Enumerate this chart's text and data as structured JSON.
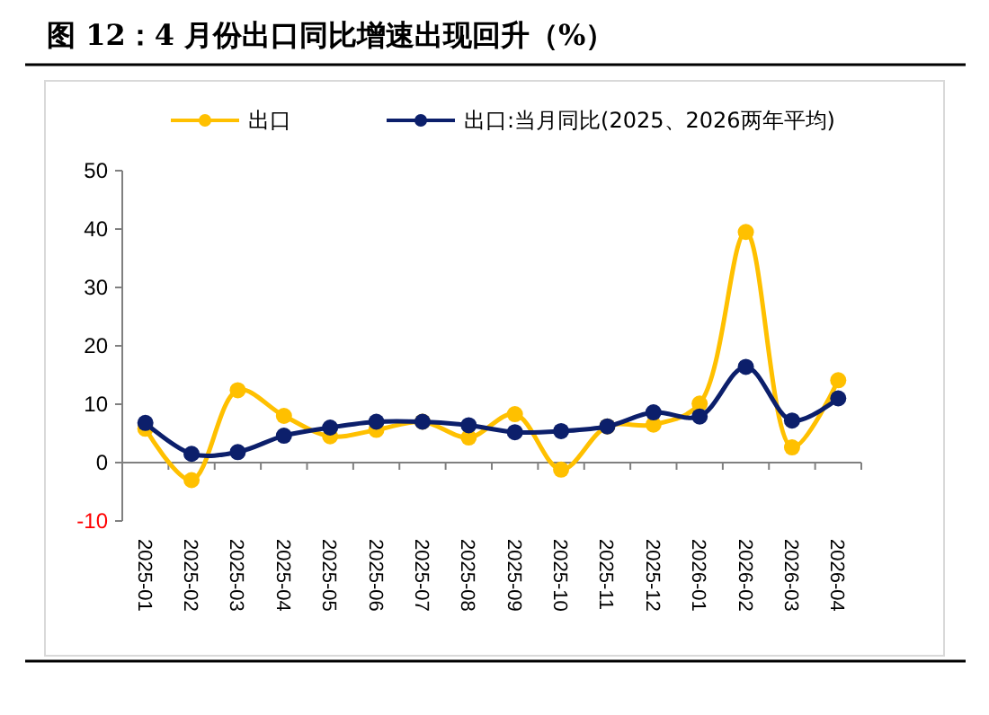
{
  "chart_data": {
    "type": "line",
    "title": "图 12：4 月份出口同比增速出现回升（%）",
    "categories": [
      "2025-01",
      "2025-02",
      "2025-03",
      "2025-04",
      "2025-05",
      "2025-06",
      "2025-07",
      "2025-08",
      "2025-09",
      "2025-10",
      "2025-11",
      "2025-12",
      "2026-01",
      "2026-02",
      "2026-03",
      "2026-04"
    ],
    "series": [
      {
        "name": "出口",
        "color": "#ffc000",
        "values": [
          5.8,
          -3.0,
          12.4,
          8.0,
          4.5,
          5.6,
          7.0,
          4.3,
          8.3,
          -1.2,
          6.2,
          6.5,
          10.1,
          39.5,
          2.6,
          14.1
        ]
      },
      {
        "name": "出口:当月同比(2025、2026两年平均)",
        "color": "#0c1f6b",
        "values": [
          6.8,
          1.5,
          1.8,
          4.6,
          6.0,
          7.0,
          7.0,
          6.4,
          5.2,
          5.4,
          6.2,
          8.6,
          7.9,
          16.4,
          7.2,
          11.0
        ]
      }
    ],
    "ylim": [
      -10,
      50
    ],
    "yticks": [
      -10,
      0,
      10,
      20,
      30,
      40,
      50
    ],
    "legend": "top",
    "marker": "circle",
    "line_style": "solid"
  }
}
